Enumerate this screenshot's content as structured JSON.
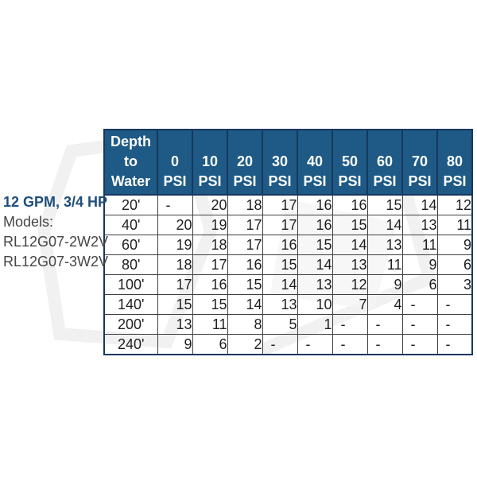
{
  "left_panel": {
    "title": "12 GPM, 3/4 HP",
    "models_label": "Models:",
    "models": [
      "RL12G07-2W2V",
      "RL12G07-3W2V"
    ]
  },
  "table": {
    "header": {
      "depth_label": "Depth\nto\nWater",
      "psi_columns": [
        {
          "value": "0",
          "unit": "PSI"
        },
        {
          "value": "10",
          "unit": "PSI"
        },
        {
          "value": "20",
          "unit": "PSI"
        },
        {
          "value": "30",
          "unit": "PSI"
        },
        {
          "value": "40",
          "unit": "PSI"
        },
        {
          "value": "50",
          "unit": "PSI"
        },
        {
          "value": "60",
          "unit": "PSI"
        },
        {
          "value": "70",
          "unit": "PSI"
        },
        {
          "value": "80",
          "unit": "PSI"
        }
      ]
    },
    "rows": [
      {
        "depth": "20'",
        "values": [
          "-",
          "20",
          "18",
          "17",
          "16",
          "16",
          "15",
          "14",
          "12"
        ]
      },
      {
        "depth": "40'",
        "values": [
          "20",
          "19",
          "17",
          "17",
          "16",
          "15",
          "14",
          "13",
          "11"
        ]
      },
      {
        "depth": "60'",
        "values": [
          "19",
          "18",
          "17",
          "16",
          "15",
          "14",
          "13",
          "11",
          "9"
        ]
      },
      {
        "depth": "80'",
        "values": [
          "18",
          "17",
          "16",
          "15",
          "14",
          "13",
          "11",
          "9",
          "6"
        ]
      },
      {
        "depth": "100'",
        "values": [
          "17",
          "16",
          "15",
          "14",
          "13",
          "12",
          "9",
          "6",
          "3"
        ]
      },
      {
        "depth": "140'",
        "values": [
          "15",
          "15",
          "14",
          "13",
          "10",
          "7",
          "4",
          "-",
          "-"
        ]
      },
      {
        "depth": "200'",
        "values": [
          "13",
          "11",
          "8",
          "5",
          "1",
          "-",
          "-",
          "-",
          "-"
        ]
      },
      {
        "depth": "240'",
        "values": [
          "9",
          "6",
          "2",
          "-",
          "-",
          "-",
          "-",
          "-",
          "-"
        ]
      }
    ]
  },
  "colors": {
    "header_bg": "#1E5A85",
    "header_border": "#17375D",
    "outer_border": "#17375D",
    "cell_border": "#3F3F3F",
    "title_blue": "#1F4E79",
    "label_gray": "#454545",
    "cell_text": "#1F1F1F"
  }
}
